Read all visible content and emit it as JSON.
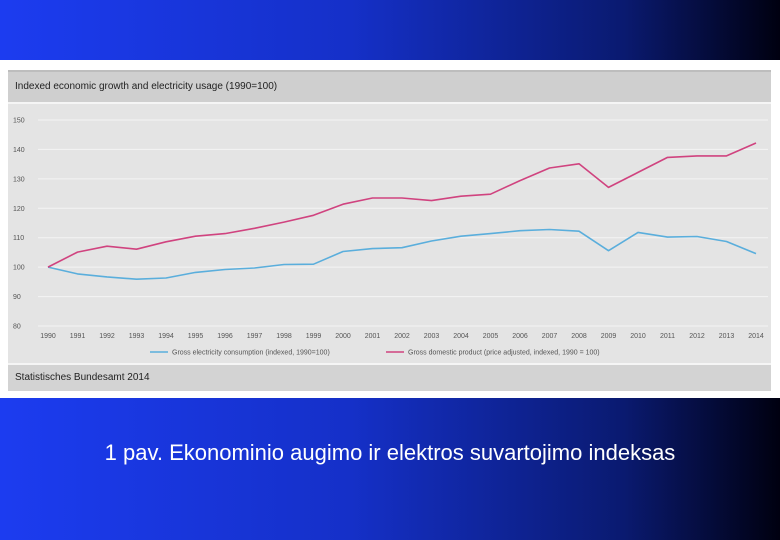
{
  "caption": "1 pav. Ekonominio augimo ir elektros suvartojimo indeksas",
  "source": "Statistisches Bundesamt 2014",
  "colors": {
    "electricity": "#5aaedc",
    "gdp": "#d0437f"
  },
  "chart_data": {
    "type": "line",
    "title": "Indexed economic growth and electricity usage (1990=100)",
    "xlabel": "",
    "ylabel": "",
    "x": [
      "1990",
      "1991",
      "1992",
      "1993",
      "1994",
      "1995",
      "1996",
      "1997",
      "1998",
      "1999",
      "2000",
      "2001",
      "2002",
      "2003",
      "2004",
      "2005",
      "2006",
      "2007",
      "2008",
      "2009",
      "2010",
      "2011",
      "2012",
      "2013",
      "2014"
    ],
    "ylim": [
      80,
      150
    ],
    "yticks": [
      80,
      90,
      100,
      110,
      120,
      130,
      140,
      150
    ],
    "grid": true,
    "legend_position": "bottom",
    "series": [
      {
        "name": "Gross electricity consumption (indexed, 1990=100)",
        "values": [
          100,
          97.7,
          96.7,
          95.9,
          96.3,
          98.2,
          99.2,
          99.7,
          100.9,
          101,
          105.3,
          106.3,
          106.6,
          108.9,
          110.5,
          111.4,
          112.4,
          112.8,
          112.2,
          105.6,
          111.8,
          110.2,
          110.4,
          108.7,
          104.6
        ]
      },
      {
        "name": "Gross domestic product (price adjusted, indexed, 1990 = 100)",
        "values": [
          100,
          105.1,
          107.1,
          106.1,
          108.6,
          110.5,
          111.4,
          113.2,
          115.3,
          117.6,
          121.4,
          123.5,
          123.5,
          122.6,
          124.1,
          124.8,
          129.4,
          133.7,
          135.1,
          127.1,
          132.2,
          137.3,
          137.8,
          137.8,
          142.2
        ]
      }
    ]
  }
}
